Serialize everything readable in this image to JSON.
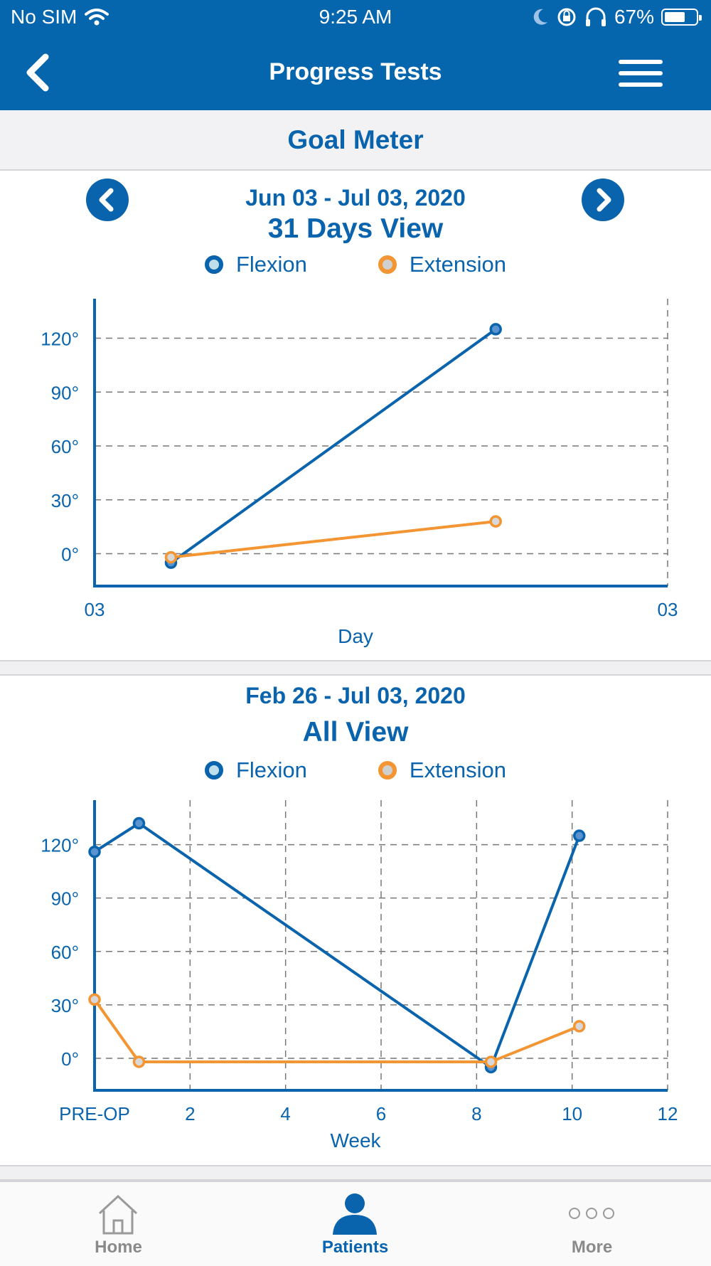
{
  "status": {
    "carrier": "No SIM",
    "time": "9:25 AM",
    "battery": "67%",
    "battery_level": 0.67
  },
  "header": {
    "title": "Progress Tests"
  },
  "section": {
    "title": "Goal Meter"
  },
  "colors": {
    "primary": "#0a64ad",
    "flexion": "#0a64ad",
    "extension": "#f39533"
  },
  "icons": {
    "back": "chevron-left-icon",
    "menu": "hamburger-icon",
    "prev": "prev-arrow-icon",
    "next": "next-arrow-icon"
  },
  "chart1": {
    "date_range": "Jun 03 - Jul 03, 2020",
    "view_title": "31 Days View",
    "legend_flexion": "Flexion",
    "legend_extension": "Extension"
  },
  "chart2": {
    "date_range": "Feb 26 - Jul 03, 2020",
    "view_title": "All View",
    "legend_flexion": "Flexion",
    "legend_extension": "Extension"
  },
  "chart_data": [
    {
      "type": "line",
      "title": "31 Days View",
      "xlabel": "Day",
      "x_tick_labels": [
        "03",
        "03"
      ],
      "xlim": [
        0,
        30
      ],
      "y_tick_labels": [
        "120°",
        "90°",
        "60°",
        "30°",
        "0°"
      ],
      "y_ticks": [
        120,
        90,
        60,
        30,
        0
      ],
      "ylim": [
        -18,
        142
      ],
      "grid": true,
      "legend": "top-center",
      "series": [
        {
          "name": "Flexion",
          "x": [
            4,
            21
          ],
          "values": [
            -5,
            125
          ]
        },
        {
          "name": "Extension",
          "x": [
            4,
            21
          ],
          "values": [
            -2,
            18
          ]
        }
      ]
    },
    {
      "type": "line",
      "title": "All View",
      "xlabel": "Week",
      "x_tick_labels": [
        "PRE-OP",
        "2",
        "4",
        "6",
        "8",
        "10",
        "12"
      ],
      "x_ticks": [
        0,
        2,
        4,
        6,
        8,
        10,
        12
      ],
      "xlim": [
        0,
        12
      ],
      "y_tick_labels": [
        "120°",
        "90°",
        "60°",
        "30°",
        "0°"
      ],
      "y_ticks": [
        120,
        90,
        60,
        30,
        0
      ],
      "ylim": [
        -18,
        145
      ],
      "grid": true,
      "legend": "top-center",
      "series": [
        {
          "name": "Flexion",
          "x": [
            0,
            0.93,
            8.3,
            10.15
          ],
          "values": [
            116,
            132,
            -5,
            125
          ]
        },
        {
          "name": "Extension",
          "x": [
            0,
            0.93,
            8.3,
            10.15
          ],
          "values": [
            33,
            -2,
            -2,
            18
          ]
        }
      ]
    }
  ],
  "tabs": [
    {
      "label": "Home",
      "icon": "home-icon"
    },
    {
      "label": "Patients",
      "icon": "person-icon"
    },
    {
      "label": "More",
      "icon": "more-icon"
    }
  ]
}
